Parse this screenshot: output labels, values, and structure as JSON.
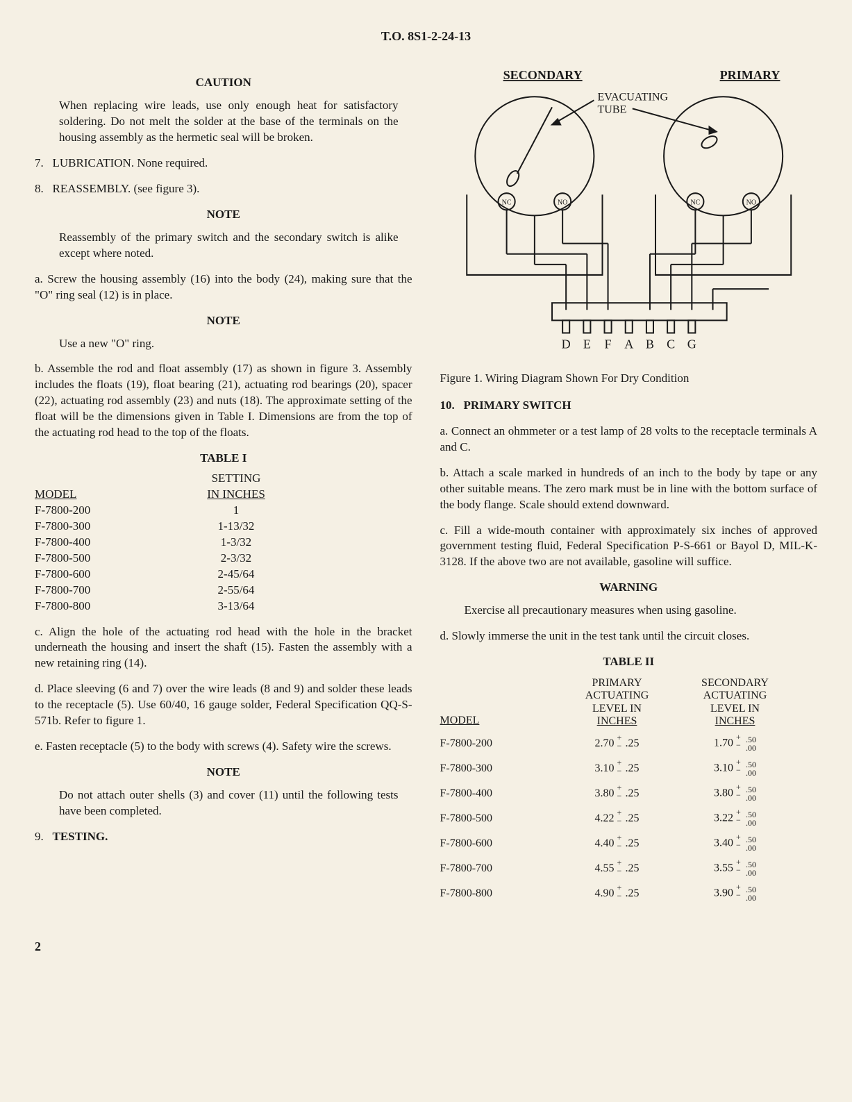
{
  "doc_number": "T.O. 8S1-2-24-13",
  "page_number": "2",
  "left": {
    "caution_head": "CAUTION",
    "caution_body": "When replacing wire leads, use only enough heat for satisfactory soldering. Do not melt the solder at the base of the terminals on the housing assembly as the hermetic seal will be broken.",
    "item7_label": "7.",
    "item7_title": "LUBRICATION.",
    "item7_body": "None required.",
    "item8_label": "8.",
    "item8_title": "REASSEMBLY.",
    "item8_body": "(see figure 3).",
    "note1_head": "NOTE",
    "note1_body": "Reassembly of the primary switch and the secondary switch is alike except where noted.",
    "para_a": "a.   Screw the housing assembly (16) into the body (24), making sure that the \"O\" ring seal (12) is in place.",
    "note2_head": "NOTE",
    "note2_body": "Use a new \"O\" ring.",
    "para_b": "b.   Assemble the rod and float assembly (17) as shown in figure 3. Assembly includes the floats (19), float bearing (21), actuating rod bearings (20), spacer (22), actuating rod assembly (23) and nuts (18). The approximate setting of the float will be the dimensions given in Table I. Dimensions are from the top of the actuating rod head to the top of the floats.",
    "table1_title": "TABLE I",
    "table1_head_model": "MODEL",
    "table1_head_setting_l1": "SETTING",
    "table1_head_setting_l2": "IN INCHES",
    "table1_rows": [
      {
        "model": "F-7800-200",
        "setting": "1"
      },
      {
        "model": "F-7800-300",
        "setting": "1-13/32"
      },
      {
        "model": "F-7800-400",
        "setting": "1-3/32"
      },
      {
        "model": "F-7800-500",
        "setting": "2-3/32"
      },
      {
        "model": "F-7800-600",
        "setting": "2-45/64"
      },
      {
        "model": "F-7800-700",
        "setting": "2-55/64"
      },
      {
        "model": "F-7800-800",
        "setting": "3-13/64"
      }
    ],
    "para_c": "c.   Align the hole of the actuating rod head with the hole in the bracket underneath the housing and insert the shaft (15). Fasten the assembly with a new retaining ring (14).",
    "para_d": "d.   Place sleeving (6 and 7) over the wire leads (8 and 9) and solder these leads to the receptacle (5). Use 60/40, 16 gauge solder, Federal Specification QQ-S-571b. Refer to figure 1.",
    "para_e": "e.   Fasten receptacle (5) to the body with screws (4). Safety wire the screws.",
    "note3_head": "NOTE",
    "note3_body": "Do not attach outer shells (3) and cover (11) until the following tests have been completed.",
    "item9_label": "9.",
    "item9_title": "TESTING."
  },
  "right": {
    "diagram": {
      "label_secondary": "SECONDARY",
      "label_primary": "PRIMARY",
      "label_evac": "EVACUATING",
      "label_tube": "TUBE",
      "term_nc": "NC",
      "term_no": "NO",
      "pins": [
        "D",
        "E",
        "F",
        "A",
        "B",
        "C",
        "G"
      ],
      "stroke": "#1a1a1a",
      "stroke_width": 2
    },
    "fig_caption": "Figure 1. Wiring Diagram Shown For Dry Condition",
    "item10_label": "10.",
    "item10_title": "PRIMARY SWITCH",
    "para_a": "a.   Connect an ohmmeter or a test lamp of 28 volts to the receptacle terminals A and C.",
    "para_b": "b.   Attach a scale marked in hundreds of an inch to the body by tape or any other suitable means. The zero mark must be in line with the bottom surface of the body flange. Scale should extend downward.",
    "para_c": "c.   Fill a wide-mouth container with approximately six inches of approved government testing fluid, Federal Specification P-S-661 or Bayol D, MIL-K-3128. If the above two are not available, gasoline will suffice.",
    "warn_head": "WARNING",
    "warn_body": "Exercise all precautionary measures when using gasoline.",
    "para_d": "d.   Slowly immerse the unit in the test tank until the circuit closes.",
    "table2_title": "TABLE II",
    "table2_head_model": "MODEL",
    "table2_head_primary": "PRIMARY\nACTUATING\nLEVEL IN\nINCHES",
    "table2_head_secondary": "SECONDARY\nACTUATING\nLEVEL IN\nINCHES",
    "table2_rows": [
      {
        "model": "F-7800-200",
        "p": "2.70",
        "p_tol": ".25",
        "s": "1.70",
        "s_tol_hi": ".50",
        "s_tol_lo": ".00"
      },
      {
        "model": "F-7800-300",
        "p": "3.10",
        "p_tol": ".25",
        "s": "3.10",
        "s_tol_hi": ".50",
        "s_tol_lo": ".00"
      },
      {
        "model": "F-7800-400",
        "p": "3.80",
        "p_tol": ".25",
        "s": "3.80",
        "s_tol_hi": ".50",
        "s_tol_lo": ".00"
      },
      {
        "model": "F-7800-500",
        "p": "4.22",
        "p_tol": ".25",
        "s": "3.22",
        "s_tol_hi": ".50",
        "s_tol_lo": ".00"
      },
      {
        "model": "F-7800-600",
        "p": "4.40",
        "p_tol": ".25",
        "s": "3.40",
        "s_tol_hi": ".50",
        "s_tol_lo": ".00"
      },
      {
        "model": "F-7800-700",
        "p": "4.55",
        "p_tol": ".25",
        "s": "3.55",
        "s_tol_hi": ".50",
        "s_tol_lo": ".00"
      },
      {
        "model": "F-7800-800",
        "p": "4.90",
        "p_tol": ".25",
        "s": "3.90",
        "s_tol_hi": ".50",
        "s_tol_lo": ".00"
      }
    ]
  }
}
